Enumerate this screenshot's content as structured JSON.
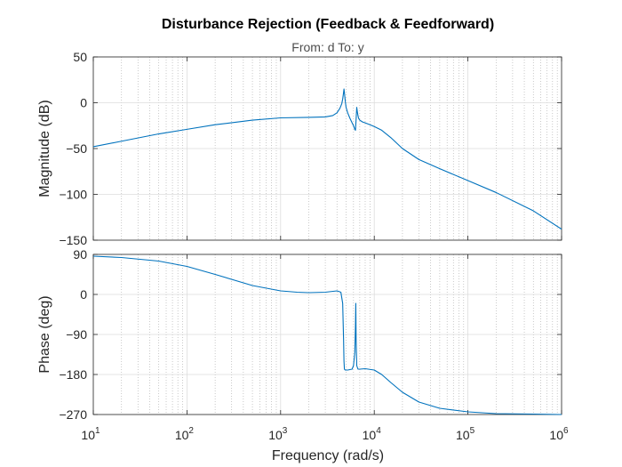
{
  "chart_data": {
    "type": "line",
    "title": "Disturbance Rejection (Feedback & Feedforward)",
    "subtitle": "From: d  To: y",
    "xlabel": "Frequency  (rad/s)",
    "xscale": "log",
    "xlim": [
      10,
      1000000
    ],
    "x_ticks": [
      {
        "base": "10",
        "exp": "1"
      },
      {
        "base": "10",
        "exp": "2"
      },
      {
        "base": "10",
        "exp": "3"
      },
      {
        "base": "10",
        "exp": "4"
      },
      {
        "base": "10",
        "exp": "5"
      },
      {
        "base": "10",
        "exp": "6"
      }
    ],
    "grid": true,
    "line_color": "#0072bd",
    "panels": [
      {
        "name": "magnitude",
        "ylabel": "Magnitude (dB)",
        "ylim": [
          -150,
          50
        ],
        "yticks": [
          50,
          0,
          -50,
          -100,
          -150
        ],
        "series": {
          "x": [
            10,
            20,
            50,
            100,
            200,
            500,
            1000,
            2000,
            3000,
            3600,
            4000,
            4300,
            4500,
            4600,
            4700,
            4750,
            4800,
            4900,
            5000,
            5200,
            5500,
            5800,
            6000,
            6200,
            6300,
            6400,
            6500,
            6600,
            6700,
            6800,
            7000,
            7500,
            8000,
            9000,
            10000,
            12000,
            15000,
            20000,
            30000,
            50000,
            100000,
            200000,
            500000,
            1000000
          ],
          "y": [
            -48,
            -42,
            -34,
            -29,
            -24,
            -19,
            -16.5,
            -16,
            -15.5,
            -14,
            -11,
            -6,
            -1,
            4,
            11,
            15,
            11,
            2,
            -5,
            -11,
            -17,
            -22,
            -25,
            -29,
            -30,
            -18,
            -5,
            -10,
            -14,
            -17,
            -19,
            -21,
            -22,
            -24,
            -26,
            -30,
            -38,
            -50,
            -62,
            -72,
            -85,
            -98,
            -118,
            -138
          ]
        }
      },
      {
        "name": "phase",
        "ylabel": "Phase (deg)",
        "ylim": [
          -270,
          90
        ],
        "yticks": [
          90,
          0,
          -90,
          -180,
          -270
        ],
        "series": {
          "x": [
            10,
            20,
            50,
            100,
            200,
            500,
            1000,
            1500,
            2000,
            3000,
            4000,
            4400,
            4600,
            4700,
            4750,
            4800,
            4900,
            5200,
            5800,
            6000,
            6200,
            6300,
            6350,
            6400,
            6500,
            6700,
            7000,
            8000,
            10000,
            12000,
            15000,
            20000,
            30000,
            50000,
            100000,
            200000,
            500000,
            1000000
          ],
          "y": [
            86,
            83,
            75,
            63,
            45,
            20,
            8,
            5,
            4,
            5,
            8,
            5,
            -20,
            -100,
            -150,
            -168,
            -170,
            -170,
            -168,
            -160,
            -130,
            -70,
            -20,
            -100,
            -160,
            -168,
            -168,
            -167,
            -170,
            -180,
            -198,
            -220,
            -242,
            -256,
            -264,
            -268,
            -269,
            -270
          ]
        }
      }
    ]
  }
}
